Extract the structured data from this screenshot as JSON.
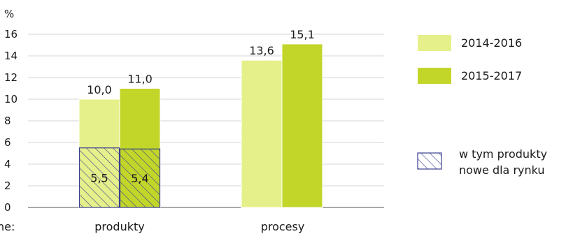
{
  "chart_data": {
    "type": "bar",
    "unit_label": "%",
    "ylim": [
      0,
      16
    ],
    "yticks": [
      0,
      2,
      4,
      6,
      8,
      10,
      12,
      14,
      16
    ],
    "grid": true,
    "categories": [
      "produkty",
      "procesy"
    ],
    "category_prefix": "ne:",
    "series": [
      {
        "name": "2014-2016",
        "values": [
          10.0,
          13.6
        ],
        "labels": [
          "10,0",
          "13,6"
        ],
        "color": "#e6f08a"
      },
      {
        "name": "2015-2017",
        "values": [
          11.0,
          15.1
        ],
        "labels": [
          "11,0",
          "15,1"
        ],
        "color": "#c2d62a"
      }
    ],
    "overlay": {
      "name": "w tym produkty nowe dla rynku",
      "name_lines": [
        "w tym produkty",
        "nowe dla rynku"
      ],
      "category": "produkty",
      "values": [
        5.5,
        5.4
      ],
      "labels": [
        "5,5",
        "5,4"
      ],
      "hatch_color": "#3a3f8f"
    },
    "legend_position": "right"
  }
}
